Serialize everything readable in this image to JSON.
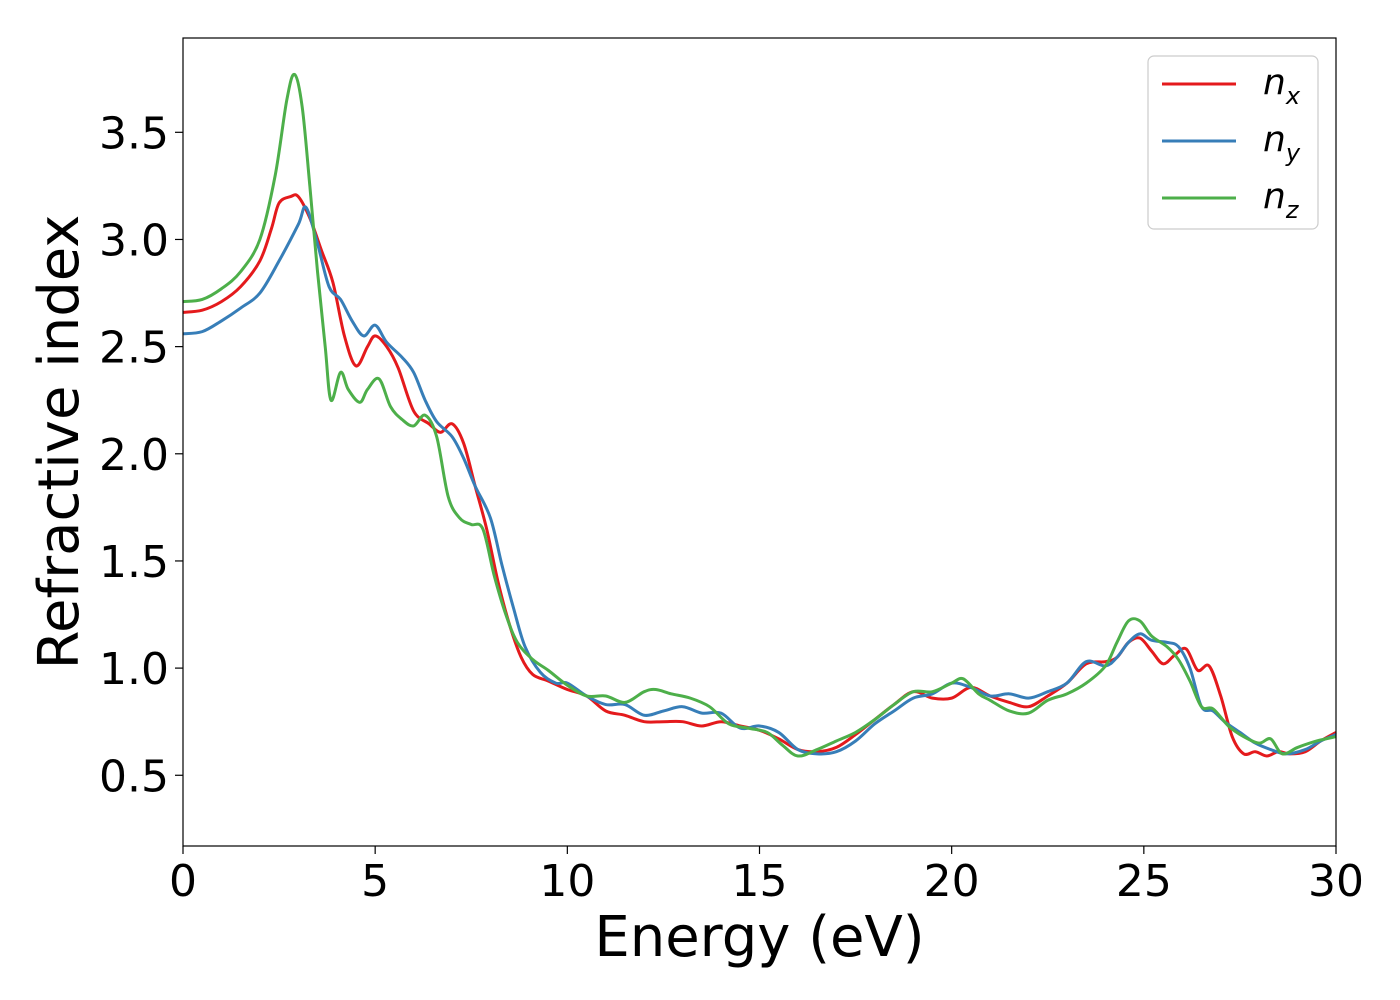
{
  "chart_data": {
    "type": "line",
    "title": "",
    "xlabel": "Energy (eV)",
    "ylabel": "Refractive index",
    "xlim": [
      0,
      30
    ],
    "ylim": [
      0.17,
      3.94
    ],
    "xticks": [
      0,
      5,
      10,
      15,
      20,
      25,
      30
    ],
    "xtick_labels": [
      "0",
      "5",
      "10",
      "15",
      "20",
      "25",
      "30"
    ],
    "yticks": [
      0.5,
      1.0,
      1.5,
      2.0,
      2.5,
      3.0,
      3.5
    ],
    "ytick_labels": [
      "0.5",
      "1.0",
      "1.5",
      "2.0",
      "2.5",
      "3.0",
      "3.5"
    ],
    "grid": false,
    "legend_position": "top-right",
    "series": [
      {
        "name": "n",
        "subscript": "x",
        "color": "#e41a1c",
        "points": [
          [
            0,
            2.66
          ],
          [
            0.5,
            2.67
          ],
          [
            1,
            2.71
          ],
          [
            1.5,
            2.78
          ],
          [
            2,
            2.9
          ],
          [
            2.3,
            3.05
          ],
          [
            2.5,
            3.17
          ],
          [
            2.8,
            3.2
          ],
          [
            3,
            3.2
          ],
          [
            3.3,
            3.1
          ],
          [
            3.6,
            2.95
          ],
          [
            3.9,
            2.8
          ],
          [
            4.2,
            2.55
          ],
          [
            4.5,
            2.41
          ],
          [
            4.8,
            2.5
          ],
          [
            5,
            2.55
          ],
          [
            5.3,
            2.5
          ],
          [
            5.6,
            2.4
          ],
          [
            6,
            2.2
          ],
          [
            6.4,
            2.14
          ],
          [
            6.7,
            2.1
          ],
          [
            7,
            2.14
          ],
          [
            7.3,
            2.05
          ],
          [
            7.6,
            1.85
          ],
          [
            7.9,
            1.65
          ],
          [
            8.2,
            1.4
          ],
          [
            8.5,
            1.2
          ],
          [
            8.8,
            1.05
          ],
          [
            9.1,
            0.97
          ],
          [
            9.5,
            0.94
          ],
          [
            10,
            0.9
          ],
          [
            10.5,
            0.87
          ],
          [
            11,
            0.8
          ],
          [
            11.5,
            0.78
          ],
          [
            12,
            0.75
          ],
          [
            12.5,
            0.75
          ],
          [
            13,
            0.75
          ],
          [
            13.5,
            0.73
          ],
          [
            14,
            0.75
          ],
          [
            14.5,
            0.73
          ],
          [
            15,
            0.71
          ],
          [
            15.5,
            0.67
          ],
          [
            16,
            0.62
          ],
          [
            16.5,
            0.61
          ],
          [
            17,
            0.63
          ],
          [
            17.5,
            0.69
          ],
          [
            18,
            0.76
          ],
          [
            18.5,
            0.83
          ],
          [
            19,
            0.89
          ],
          [
            19.5,
            0.86
          ],
          [
            20,
            0.86
          ],
          [
            20.5,
            0.91
          ],
          [
            21,
            0.87
          ],
          [
            21.5,
            0.84
          ],
          [
            22,
            0.82
          ],
          [
            22.5,
            0.87
          ],
          [
            23,
            0.93
          ],
          [
            23.5,
            1.02
          ],
          [
            24,
            1.03
          ],
          [
            24.3,
            1.05
          ],
          [
            24.6,
            1.12
          ],
          [
            24.9,
            1.14
          ],
          [
            25.2,
            1.08
          ],
          [
            25.5,
            1.02
          ],
          [
            25.8,
            1.06
          ],
          [
            26.1,
            1.09
          ],
          [
            26.4,
            0.99
          ],
          [
            26.7,
            1.01
          ],
          [
            27,
            0.87
          ],
          [
            27.3,
            0.68
          ],
          [
            27.6,
            0.6
          ],
          [
            27.9,
            0.61
          ],
          [
            28.2,
            0.59
          ],
          [
            28.5,
            0.61
          ],
          [
            28.8,
            0.6
          ],
          [
            29.2,
            0.61
          ],
          [
            29.6,
            0.66
          ],
          [
            30,
            0.7
          ]
        ]
      },
      {
        "name": "n",
        "subscript": "y",
        "color": "#377eb8",
        "points": [
          [
            0,
            2.56
          ],
          [
            0.5,
            2.57
          ],
          [
            1,
            2.62
          ],
          [
            1.5,
            2.68
          ],
          [
            2,
            2.75
          ],
          [
            2.5,
            2.9
          ],
          [
            3,
            3.07
          ],
          [
            3.2,
            3.15
          ],
          [
            3.5,
            2.98
          ],
          [
            3.8,
            2.78
          ],
          [
            4.1,
            2.72
          ],
          [
            4.4,
            2.62
          ],
          [
            4.7,
            2.55
          ],
          [
            5,
            2.6
          ],
          [
            5.3,
            2.52
          ],
          [
            5.7,
            2.45
          ],
          [
            6,
            2.38
          ],
          [
            6.3,
            2.25
          ],
          [
            6.6,
            2.15
          ],
          [
            7,
            2.08
          ],
          [
            7.3,
            1.98
          ],
          [
            7.6,
            1.85
          ],
          [
            8,
            1.7
          ],
          [
            8.3,
            1.48
          ],
          [
            8.6,
            1.28
          ],
          [
            8.9,
            1.1
          ],
          [
            9.3,
            0.98
          ],
          [
            9.7,
            0.93
          ],
          [
            10,
            0.93
          ],
          [
            10.5,
            0.87
          ],
          [
            11,
            0.83
          ],
          [
            11.5,
            0.83
          ],
          [
            12,
            0.78
          ],
          [
            12.5,
            0.8
          ],
          [
            13,
            0.82
          ],
          [
            13.5,
            0.79
          ],
          [
            14,
            0.79
          ],
          [
            14.5,
            0.72
          ],
          [
            15,
            0.73
          ],
          [
            15.5,
            0.7
          ],
          [
            16,
            0.62
          ],
          [
            16.5,
            0.6
          ],
          [
            17,
            0.61
          ],
          [
            17.5,
            0.66
          ],
          [
            18,
            0.74
          ],
          [
            18.5,
            0.8
          ],
          [
            19,
            0.86
          ],
          [
            19.5,
            0.88
          ],
          [
            20,
            0.93
          ],
          [
            20.5,
            0.91
          ],
          [
            21,
            0.87
          ],
          [
            21.5,
            0.88
          ],
          [
            22,
            0.86
          ],
          [
            22.5,
            0.89
          ],
          [
            23,
            0.93
          ],
          [
            23.5,
            1.03
          ],
          [
            24,
            1.01
          ],
          [
            24.3,
            1.05
          ],
          [
            24.6,
            1.12
          ],
          [
            24.9,
            1.16
          ],
          [
            25.2,
            1.13
          ],
          [
            25.6,
            1.12
          ],
          [
            25.9,
            1.1
          ],
          [
            26.2,
            1.0
          ],
          [
            26.5,
            0.82
          ],
          [
            26.8,
            0.8
          ],
          [
            27.1,
            0.75
          ],
          [
            27.5,
            0.7
          ],
          [
            27.9,
            0.65
          ],
          [
            28.3,
            0.62
          ],
          [
            28.7,
            0.6
          ],
          [
            29.2,
            0.62
          ],
          [
            29.6,
            0.66
          ],
          [
            30,
            0.69
          ]
        ]
      },
      {
        "name": "n",
        "subscript": "z",
        "color": "#4daf4a",
        "points": [
          [
            0,
            2.71
          ],
          [
            0.5,
            2.72
          ],
          [
            1,
            2.77
          ],
          [
            1.5,
            2.85
          ],
          [
            2,
            3.0
          ],
          [
            2.4,
            3.3
          ],
          [
            2.7,
            3.65
          ],
          [
            2.9,
            3.77
          ],
          [
            3.1,
            3.62
          ],
          [
            3.3,
            3.25
          ],
          [
            3.5,
            2.85
          ],
          [
            3.7,
            2.5
          ],
          [
            3.85,
            2.25
          ],
          [
            4.1,
            2.38
          ],
          [
            4.3,
            2.3
          ],
          [
            4.6,
            2.24
          ],
          [
            4.8,
            2.3
          ],
          [
            5.1,
            2.35
          ],
          [
            5.4,
            2.22
          ],
          [
            5.7,
            2.16
          ],
          [
            6,
            2.13
          ],
          [
            6.3,
            2.18
          ],
          [
            6.6,
            2.08
          ],
          [
            6.9,
            1.8
          ],
          [
            7.2,
            1.7
          ],
          [
            7.5,
            1.67
          ],
          [
            7.8,
            1.65
          ],
          [
            8.1,
            1.43
          ],
          [
            8.4,
            1.25
          ],
          [
            8.7,
            1.12
          ],
          [
            9.1,
            1.04
          ],
          [
            9.5,
            0.99
          ],
          [
            10,
            0.92
          ],
          [
            10.5,
            0.87
          ],
          [
            11,
            0.87
          ],
          [
            11.5,
            0.84
          ],
          [
            12,
            0.89
          ],
          [
            12.3,
            0.9
          ],
          [
            12.7,
            0.88
          ],
          [
            13.2,
            0.86
          ],
          [
            13.7,
            0.82
          ],
          [
            14.2,
            0.74
          ],
          [
            14.7,
            0.72
          ],
          [
            15.2,
            0.7
          ],
          [
            15.6,
            0.64
          ],
          [
            16,
            0.59
          ],
          [
            16.5,
            0.62
          ],
          [
            17,
            0.66
          ],
          [
            17.5,
            0.7
          ],
          [
            18,
            0.76
          ],
          [
            18.5,
            0.83
          ],
          [
            19,
            0.89
          ],
          [
            19.5,
            0.89
          ],
          [
            20,
            0.93
          ],
          [
            20.3,
            0.95
          ],
          [
            20.7,
            0.88
          ],
          [
            21,
            0.85
          ],
          [
            21.5,
            0.8
          ],
          [
            22,
            0.79
          ],
          [
            22.5,
            0.85
          ],
          [
            23,
            0.88
          ],
          [
            23.5,
            0.93
          ],
          [
            24,
            1.01
          ],
          [
            24.3,
            1.12
          ],
          [
            24.6,
            1.22
          ],
          [
            24.9,
            1.22
          ],
          [
            25.2,
            1.15
          ],
          [
            25.6,
            1.1
          ],
          [
            25.9,
            1.04
          ],
          [
            26.2,
            0.94
          ],
          [
            26.5,
            0.82
          ],
          [
            26.8,
            0.81
          ],
          [
            27.2,
            0.73
          ],
          [
            27.6,
            0.68
          ],
          [
            28,
            0.65
          ],
          [
            28.3,
            0.67
          ],
          [
            28.6,
            0.6
          ],
          [
            29,
            0.63
          ],
          [
            29.5,
            0.66
          ],
          [
            30,
            0.68
          ]
        ]
      }
    ]
  }
}
